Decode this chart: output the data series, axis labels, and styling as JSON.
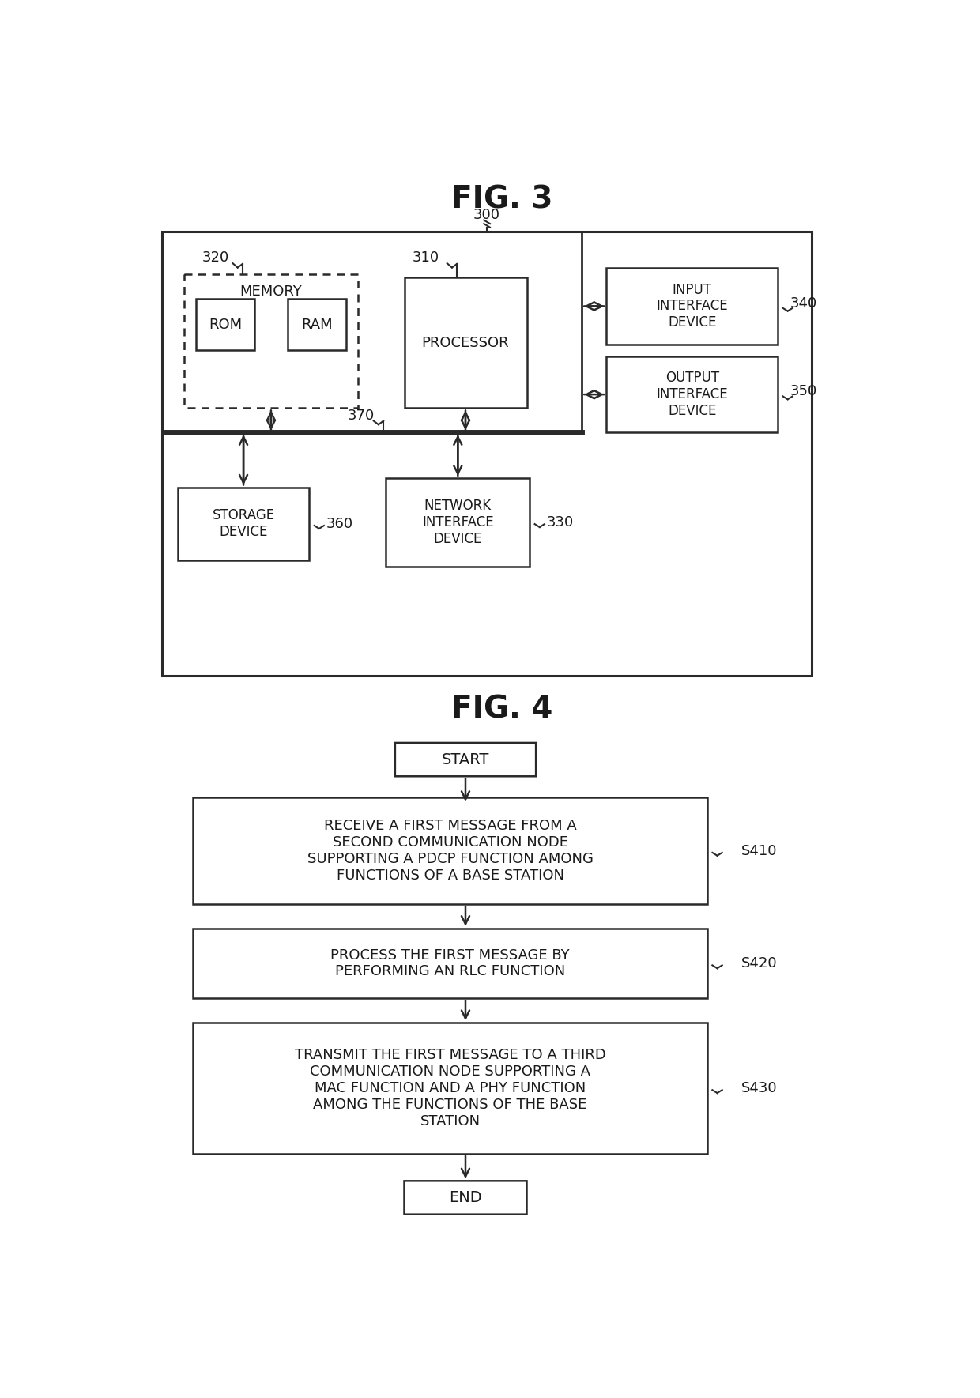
{
  "fig_title1": "FIG. 3",
  "fig_title2": "FIG. 4",
  "bg_color": "#ffffff",
  "line_color": "#2a2a2a",
  "text_color": "#1a1a1a",
  "fig3": {
    "label_300": "300",
    "label_320": "320",
    "label_310": "310",
    "label_340": "340",
    "label_350": "350",
    "label_360": "360",
    "label_330": "330",
    "label_370": "370",
    "memory_label": "MEMORY",
    "rom_label": "ROM",
    "ram_label": "RAM",
    "processor_label": "PROCESSOR",
    "input_label": "INPUT\nINTERFACE\nDEVICE",
    "output_label": "OUTPUT\nINTERFACE\nDEVICE",
    "storage_label": "STORAGE\nDEVICE",
    "network_label": "NETWORK\nINTERFACE\nDEVICE"
  },
  "fig4": {
    "start_label": "START",
    "s410_label": "RECEIVE A FIRST MESSAGE FROM A\nSECOND COMMUNICATION NODE\nSUPPORTING A PDCP FUNCTION AMONG\nFUNCTIONS OF A BASE STATION",
    "s410_ref": "S410",
    "s420_label": "PROCESS THE FIRST MESSAGE BY\nPERFORMING AN RLC FUNCTION",
    "s420_ref": "S420",
    "s430_label": "TRANSMIT THE FIRST MESSAGE TO A THIRD\nCOMMUNICATION NODE SUPPORTING A\nMAC FUNCTION AND A PHY FUNCTION\nAMONG THE FUNCTIONS OF THE BASE\nSTATION",
    "s430_ref": "S430",
    "end_label": "END"
  }
}
